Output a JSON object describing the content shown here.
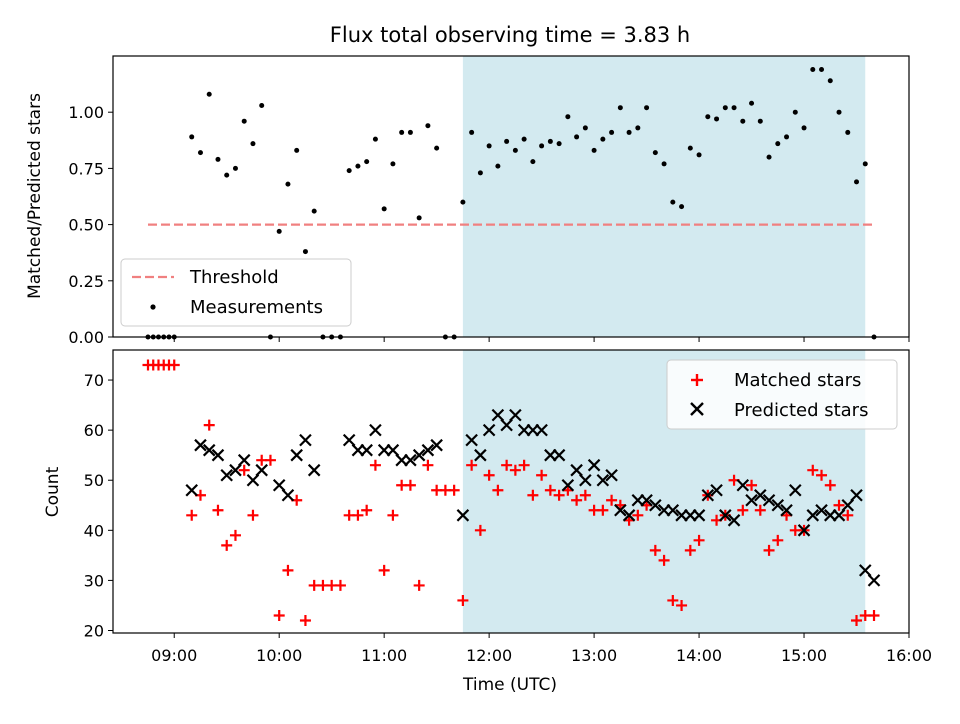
{
  "chart_data": [
    {
      "type": "scatter",
      "title": "Flux total observing time = 3.83 h",
      "ylabel": "Matched/Predicted stars",
      "ylim": [
        0,
        1.25
      ],
      "yticks": [
        0.0,
        0.25,
        0.5,
        0.75,
        1.0
      ],
      "ytick_labels": [
        "0.00",
        "0.25",
        "0.50",
        "0.75",
        "1.00"
      ],
      "xlim": [
        "08:25",
        "16:00"
      ],
      "shaded_region": {
        "from": "11:45",
        "to": "15:35",
        "color": "#d3eaf0"
      },
      "legend": {
        "location": "lower left",
        "entries": [
          "Threshold",
          "Measurements"
        ]
      },
      "threshold": {
        "name": "Threshold",
        "from": "08:45",
        "to": "15:40",
        "value": 0.5,
        "color": "#f08080",
        "style": "dashed"
      },
      "series": [
        {
          "name": "Measurements",
          "color": "#000000",
          "points": [
            [
              "08:45",
              0
            ],
            [
              "08:48",
              0
            ],
            [
              "08:51",
              0
            ],
            [
              "08:54",
              0
            ],
            [
              "08:57",
              0
            ],
            [
              "09:00",
              0
            ],
            [
              "09:10",
              0.89
            ],
            [
              "09:15",
              0.82
            ],
            [
              "09:20",
              1.08
            ],
            [
              "09:25",
              0.79
            ],
            [
              "09:30",
              0.72
            ],
            [
              "09:35",
              0.75
            ],
            [
              "09:40",
              0.96
            ],
            [
              "09:45",
              0.86
            ],
            [
              "09:50",
              1.03
            ],
            [
              "09:55",
              0
            ],
            [
              "10:00",
              0.47
            ],
            [
              "10:05",
              0.68
            ],
            [
              "10:10",
              0.83
            ],
            [
              "10:15",
              0.38
            ],
            [
              "10:20",
              0.56
            ],
            [
              "10:25",
              0
            ],
            [
              "10:30",
              0
            ],
            [
              "10:35",
              0
            ],
            [
              "10:40",
              0.74
            ],
            [
              "10:45",
              0.76
            ],
            [
              "10:50",
              0.78
            ],
            [
              "10:55",
              0.88
            ],
            [
              "11:00",
              0.57
            ],
            [
              "11:05",
              0.77
            ],
            [
              "11:10",
              0.91
            ],
            [
              "11:15",
              0.91
            ],
            [
              "11:20",
              0.53
            ],
            [
              "11:25",
              0.94
            ],
            [
              "11:30",
              0.84
            ],
            [
              "11:35",
              0
            ],
            [
              "11:40",
              0
            ],
            [
              "11:45",
              0.6
            ],
            [
              "11:50",
              0.91
            ],
            [
              "11:55",
              0.73
            ],
            [
              "12:00",
              0.85
            ],
            [
              "12:05",
              0.76
            ],
            [
              "12:10",
              0.87
            ],
            [
              "12:15",
              0.83
            ],
            [
              "12:20",
              0.88
            ],
            [
              "12:25",
              0.78
            ],
            [
              "12:30",
              0.85
            ],
            [
              "12:35",
              0.87
            ],
            [
              "12:40",
              0.86
            ],
            [
              "12:45",
              0.98
            ],
            [
              "12:50",
              0.89
            ],
            [
              "12:55",
              0.93
            ],
            [
              "13:00",
              0.83
            ],
            [
              "13:05",
              0.88
            ],
            [
              "13:10",
              0.91
            ],
            [
              "13:15",
              1.02
            ],
            [
              "13:20",
              0.91
            ],
            [
              "13:25",
              0.93
            ],
            [
              "13:30",
              1.02
            ],
            [
              "13:35",
              0.82
            ],
            [
              "13:40",
              0.77
            ],
            [
              "13:45",
              0.6
            ],
            [
              "13:50",
              0.58
            ],
            [
              "13:55",
              0.84
            ],
            [
              "14:00",
              0.81
            ],
            [
              "14:05",
              0.98
            ],
            [
              "14:10",
              0.97
            ],
            [
              "14:15",
              1.02
            ],
            [
              "14:20",
              1.02
            ],
            [
              "14:25",
              0.96
            ],
            [
              "14:30",
              1.04
            ],
            [
              "14:35",
              0.96
            ],
            [
              "14:40",
              0.8
            ],
            [
              "14:45",
              0.86
            ],
            [
              "14:50",
              0.89
            ],
            [
              "14:55",
              1.0
            ],
            [
              "15:00",
              0.93
            ],
            [
              "15:05",
              1.19
            ],
            [
              "15:10",
              1.19
            ],
            [
              "15:15",
              1.14
            ],
            [
              "15:20",
              1.0
            ],
            [
              "15:25",
              0.91
            ],
            [
              "15:30",
              0.69
            ],
            [
              "15:35",
              0.77
            ],
            [
              "15:40",
              0
            ]
          ]
        }
      ]
    },
    {
      "type": "scatter",
      "xlabel": "Time (UTC)",
      "ylabel": "Count",
      "ylim": [
        19.5,
        76
      ],
      "yticks": [
        20,
        30,
        40,
        50,
        60,
        70
      ],
      "xlim": [
        "08:25",
        "16:00"
      ],
      "xticks": [
        "09:00",
        "10:00",
        "11:00",
        "12:00",
        "13:00",
        "14:00",
        "15:00",
        "16:00"
      ],
      "shaded_region": {
        "from": "11:45",
        "to": "15:35",
        "color": "#d3eaf0"
      },
      "legend": {
        "location": "upper right",
        "entries": [
          "Matched stars",
          "Predicted stars"
        ]
      },
      "series": [
        {
          "name": "Matched stars",
          "marker": "plus",
          "color": "#ff0000",
          "points": [
            [
              "08:45",
              73
            ],
            [
              "08:48",
              73
            ],
            [
              "08:51",
              73
            ],
            [
              "08:54",
              73
            ],
            [
              "08:57",
              73
            ],
            [
              "09:00",
              73
            ],
            [
              "09:10",
              43
            ],
            [
              "09:15",
              47
            ],
            [
              "09:20",
              61
            ],
            [
              "09:25",
              44
            ],
            [
              "09:30",
              37
            ],
            [
              "09:35",
              39
            ],
            [
              "09:40",
              52
            ],
            [
              "09:45",
              43
            ],
            [
              "09:50",
              54
            ],
            [
              "09:55",
              54
            ],
            [
              "10:00",
              23
            ],
            [
              "10:05",
              32
            ],
            [
              "10:10",
              46
            ],
            [
              "10:15",
              22
            ],
            [
              "10:20",
              29
            ],
            [
              "10:25",
              29
            ],
            [
              "10:30",
              29
            ],
            [
              "10:35",
              29
            ],
            [
              "10:40",
              43
            ],
            [
              "10:45",
              43
            ],
            [
              "10:50",
              44
            ],
            [
              "10:55",
              53
            ],
            [
              "11:00",
              32
            ],
            [
              "11:05",
              43
            ],
            [
              "11:10",
              49
            ],
            [
              "11:15",
              49
            ],
            [
              "11:20",
              29
            ],
            [
              "11:25",
              53
            ],
            [
              "11:30",
              48
            ],
            [
              "11:35",
              48
            ],
            [
              "11:40",
              48
            ],
            [
              "11:45",
              26
            ],
            [
              "11:50",
              53
            ],
            [
              "11:55",
              40
            ],
            [
              "12:00",
              51
            ],
            [
              "12:05",
              48
            ],
            [
              "12:10",
              53
            ],
            [
              "12:15",
              52
            ],
            [
              "12:20",
              53
            ],
            [
              "12:25",
              47
            ],
            [
              "12:30",
              51
            ],
            [
              "12:35",
              48
            ],
            [
              "12:40",
              47
            ],
            [
              "12:45",
              48
            ],
            [
              "12:50",
              46
            ],
            [
              "12:55",
              47
            ],
            [
              "13:00",
              44
            ],
            [
              "13:05",
              44
            ],
            [
              "13:10",
              46
            ],
            [
              "13:15",
              45
            ],
            [
              "13:20",
              42
            ],
            [
              "13:25",
              43
            ],
            [
              "13:30",
              45
            ],
            [
              "13:35",
              36
            ],
            [
              "13:40",
              34
            ],
            [
              "13:45",
              26
            ],
            [
              "13:50",
              25
            ],
            [
              "13:55",
              36
            ],
            [
              "14:00",
              38
            ],
            [
              "14:05",
              47
            ],
            [
              "14:10",
              42
            ],
            [
              "14:15",
              43
            ],
            [
              "14:20",
              50
            ],
            [
              "14:25",
              44
            ],
            [
              "14:30",
              49
            ],
            [
              "14:35",
              44
            ],
            [
              "14:40",
              36
            ],
            [
              "14:45",
              38
            ],
            [
              "14:50",
              43
            ],
            [
              "14:55",
              40
            ],
            [
              "15:00",
              40
            ],
            [
              "15:05",
              52
            ],
            [
              "15:10",
              51
            ],
            [
              "15:15",
              49
            ],
            [
              "15:20",
              45
            ],
            [
              "15:25",
              43
            ],
            [
              "15:30",
              22
            ],
            [
              "15:35",
              23
            ],
            [
              "15:40",
              23
            ]
          ]
        },
        {
          "name": "Predicted stars",
          "marker": "x",
          "color": "#000000",
          "points": [
            [
              "09:10",
              48
            ],
            [
              "09:15",
              57
            ],
            [
              "09:20",
              56
            ],
            [
              "09:25",
              55
            ],
            [
              "09:30",
              51
            ],
            [
              "09:35",
              52
            ],
            [
              "09:40",
              54
            ],
            [
              "09:45",
              50
            ],
            [
              "09:50",
              52
            ],
            [
              "10:00",
              49
            ],
            [
              "10:05",
              47
            ],
            [
              "10:10",
              55
            ],
            [
              "10:15",
              58
            ],
            [
              "10:20",
              52
            ],
            [
              "10:40",
              58
            ],
            [
              "10:45",
              56
            ],
            [
              "10:50",
              56
            ],
            [
              "10:55",
              60
            ],
            [
              "11:00",
              56
            ],
            [
              "11:05",
              56
            ],
            [
              "11:10",
              54
            ],
            [
              "11:15",
              54
            ],
            [
              "11:20",
              55
            ],
            [
              "11:25",
              56
            ],
            [
              "11:30",
              57
            ],
            [
              "11:45",
              43
            ],
            [
              "11:50",
              58
            ],
            [
              "11:55",
              55
            ],
            [
              "12:00",
              60
            ],
            [
              "12:05",
              63
            ],
            [
              "12:10",
              61
            ],
            [
              "12:15",
              63
            ],
            [
              "12:20",
              60
            ],
            [
              "12:25",
              60
            ],
            [
              "12:30",
              60
            ],
            [
              "12:35",
              55
            ],
            [
              "12:40",
              55
            ],
            [
              "12:45",
              49
            ],
            [
              "12:50",
              52
            ],
            [
              "12:55",
              50
            ],
            [
              "13:00",
              53
            ],
            [
              "13:05",
              50
            ],
            [
              "13:10",
              51
            ],
            [
              "13:15",
              44
            ],
            [
              "13:20",
              43
            ],
            [
              "13:25",
              46
            ],
            [
              "13:30",
              46
            ],
            [
              "13:35",
              45
            ],
            [
              "13:40",
              44
            ],
            [
              "13:45",
              44
            ],
            [
              "13:50",
              43
            ],
            [
              "13:55",
              43
            ],
            [
              "14:00",
              43
            ],
            [
              "14:05",
              47
            ],
            [
              "14:10",
              48
            ],
            [
              "14:15",
              43
            ],
            [
              "14:20",
              42
            ],
            [
              "14:25",
              49
            ],
            [
              "14:30",
              46
            ],
            [
              "14:35",
              47
            ],
            [
              "14:40",
              46
            ],
            [
              "14:45",
              45
            ],
            [
              "14:50",
              44
            ],
            [
              "14:55",
              48
            ],
            [
              "15:00",
              40
            ],
            [
              "15:05",
              43
            ],
            [
              "15:10",
              44
            ],
            [
              "15:15",
              43
            ],
            [
              "15:20",
              43
            ],
            [
              "15:25",
              45
            ],
            [
              "15:30",
              47
            ],
            [
              "15:35",
              32
            ],
            [
              "15:40",
              30
            ]
          ]
        }
      ]
    }
  ]
}
